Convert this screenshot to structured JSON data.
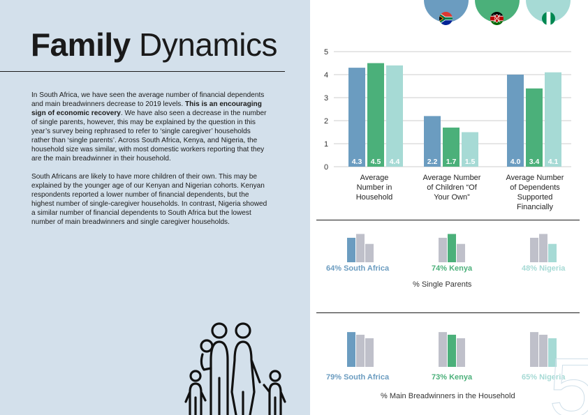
{
  "title": {
    "bold": "Family",
    "light": "Dynamics"
  },
  "body": {
    "p1_a": "In South Africa, we have seen the average number of financial dependents and main breadwinners decrease to 2019 levels. ",
    "p1_bold": "This is an encouraging sign of economic recovery",
    "p1_b": ". We have also seen a decrease in the number of single parents, however, this may be explained by the question in this year’s survey being rephrased to refer to ‘single caregiver’ households rather than ‘single parents’. Across South Africa, Kenya, and Nigeria, the household size was similar, with most domestic workers reporting that they are the main breadwinner in their household.",
    "p2": "South Africans are likely to have more children of their own. This may be explained by the younger age of our Kenyan and Nigerian cohorts. Kenyan respondents reported a lower number of financial dependents, but the highest number of single-caregiver households. In contrast, Nigeria showed a similar number of financial dependents to South Africa but the lowest number of main breadwinners and single caregiver households."
  },
  "page_number": "5",
  "colors": {
    "south_africa": "#6b9cc0",
    "kenya": "#4bb07a",
    "nigeria": "#a6dad5",
    "other_bar": "#bfc0ca",
    "background_panel": "#d3e0eb"
  },
  "icons": [
    "south-africa-flag-icon",
    "kenya-flag-icon",
    "nigeria-flag-icon",
    "family-icon"
  ],
  "chart_data": [
    {
      "type": "bar",
      "categories": [
        "Average Number in Household",
        "Average Number of Children “Of Your Own”",
        "Average Number of Dependents Supported Financially"
      ],
      "series": [
        {
          "key": "south_africa",
          "values": [
            4.3,
            2.2,
            4.0
          ],
          "value_labels": [
            "4.3",
            "2.2",
            "4.0"
          ]
        },
        {
          "key": "kenya",
          "values": [
            4.5,
            1.7,
            3.4
          ],
          "value_labels": [
            "4.5",
            "1.7",
            "3.4"
          ]
        },
        {
          "key": "nigeria",
          "values": [
            4.4,
            1.5,
            4.1
          ],
          "value_labels": [
            "4.4",
            "1.5",
            "4.1"
          ]
        }
      ],
      "yticks": [
        "0",
        "1",
        "2",
        "3",
        "4",
        "5"
      ],
      "ylim": [
        0,
        5
      ],
      "grid": true
    },
    {
      "type": "bar",
      "title": "% Single Parents",
      "categories": [
        "South Africa",
        "Kenya",
        "Nigeria"
      ],
      "values": [
        64,
        74,
        48
      ],
      "labels": [
        "64% South Africa",
        "74% Kenya",
        "48% Nigeria"
      ]
    },
    {
      "type": "bar",
      "title": "% Main Breadwinners in the Household",
      "categories": [
        "South Africa",
        "Kenya",
        "Nigeria"
      ],
      "values": [
        79,
        73,
        65
      ],
      "labels": [
        "79% South Africa",
        "73% Kenya",
        "65% Nigeria"
      ]
    }
  ]
}
